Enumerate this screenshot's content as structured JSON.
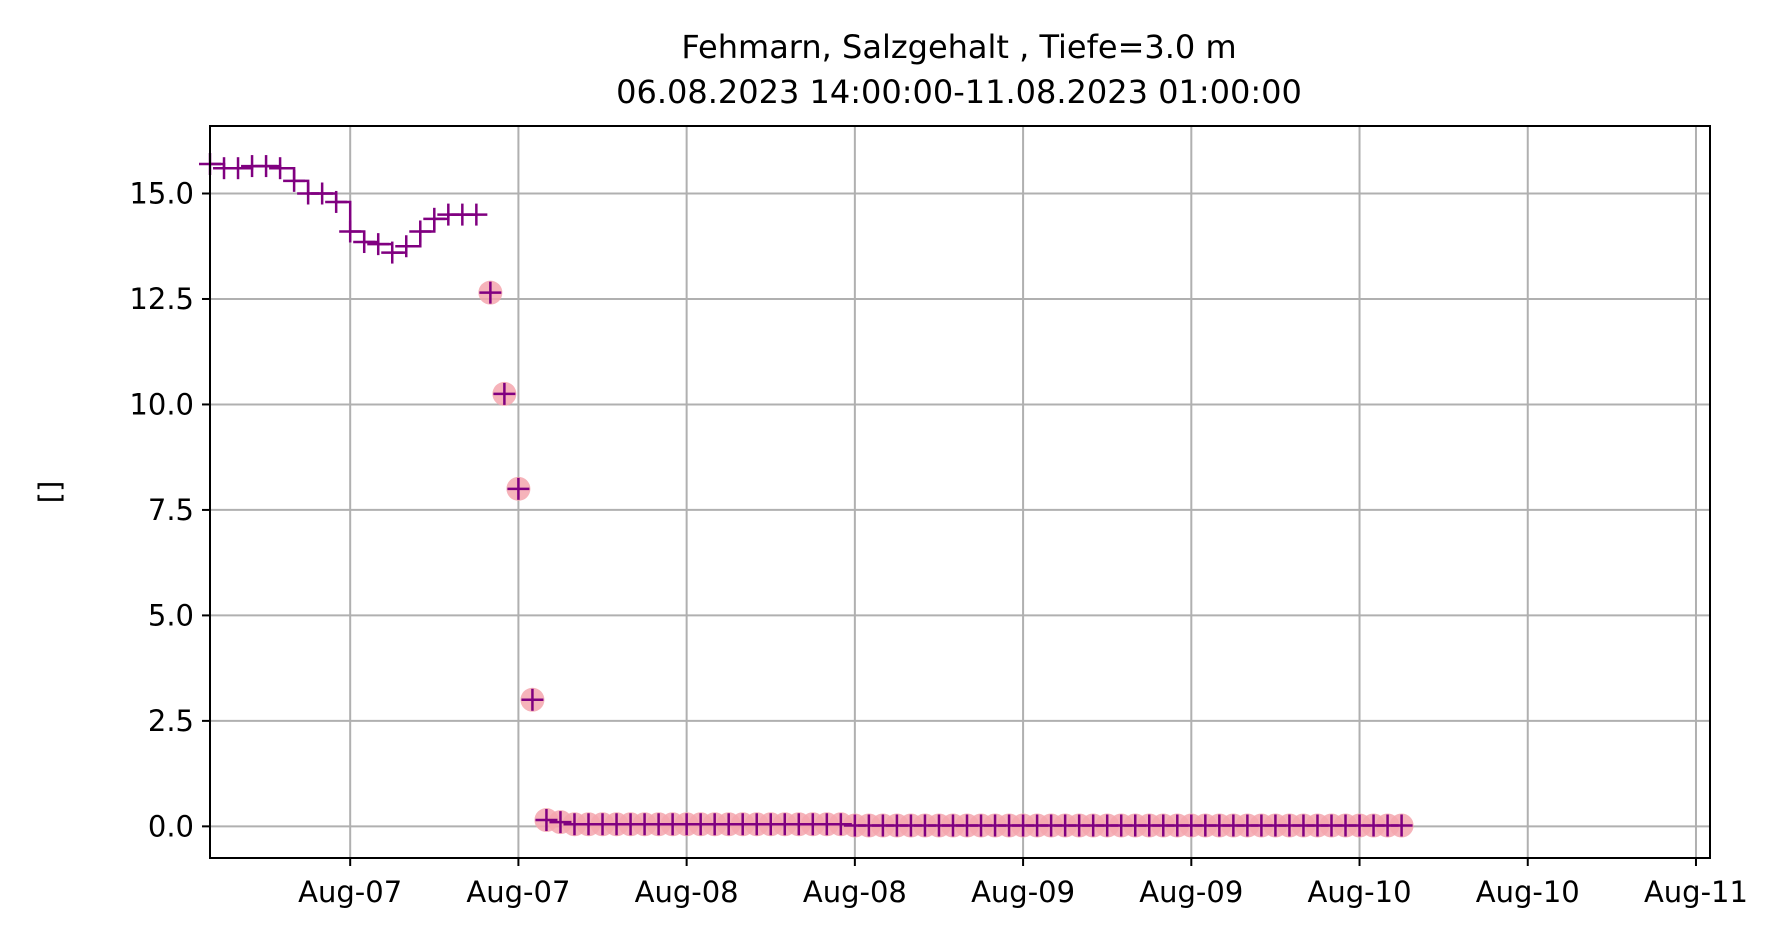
{
  "chart_data": {
    "type": "scatter",
    "title": "Fehmarn, Salzgehalt , Tiefe=3.0 m",
    "subtitle": "06.08.2023 14:00:00-11.08.2023 01:00:00",
    "xlabel": "",
    "ylabel": "[]",
    "xlim": [
      "2023-08-06T14:00",
      "2023-08-11T01:00"
    ],
    "ylim": [
      -0.75,
      16.6
    ],
    "grid": true,
    "x_ticks": [
      {
        "x": "2023-08-07T00:00",
        "label": "Aug-07"
      },
      {
        "x": "2023-08-07T12:00",
        "label": "Aug-07"
      },
      {
        "x": "2023-08-08T00:00",
        "label": "Aug-08"
      },
      {
        "x": "2023-08-08T12:00",
        "label": "Aug-08"
      },
      {
        "x": "2023-08-09T00:00",
        "label": "Aug-09"
      },
      {
        "x": "2023-08-09T12:00",
        "label": "Aug-09"
      },
      {
        "x": "2023-08-10T00:00",
        "label": "Aug-10"
      },
      {
        "x": "2023-08-10T12:00",
        "label": "Aug-10"
      },
      {
        "x": "2023-08-11T00:00",
        "label": "Aug-11"
      }
    ],
    "y_ticks": [
      {
        "y": 0.0,
        "label": "0.0"
      },
      {
        "y": 2.5,
        "label": "2.5"
      },
      {
        "y": 5.0,
        "label": "5.0"
      },
      {
        "y": 7.5,
        "label": "7.5"
      },
      {
        "y": 10.0,
        "label": "10.0"
      },
      {
        "y": 12.5,
        "label": "12.5"
      },
      {
        "y": 15.0,
        "label": "15.0"
      }
    ],
    "series": [
      {
        "style": "step-plus",
        "color": "#800080",
        "x": [
          "2023-08-06T14:00",
          "2023-08-06T15:00",
          "2023-08-06T16:00",
          "2023-08-06T17:00",
          "2023-08-06T18:00",
          "2023-08-06T19:00",
          "2023-08-06T20:00",
          "2023-08-06T21:00",
          "2023-08-06T22:00",
          "2023-08-06T23:00",
          "2023-08-07T00:00",
          "2023-08-07T01:00",
          "2023-08-07T02:00",
          "2023-08-07T03:00",
          "2023-08-07T04:00",
          "2023-08-07T05:00",
          "2023-08-07T06:00",
          "2023-08-07T07:00",
          "2023-08-07T08:00",
          "2023-08-07T09:00"
        ],
        "values": [
          15.7,
          15.6,
          15.6,
          15.65,
          15.65,
          15.6,
          15.3,
          15.0,
          15.0,
          14.8,
          14.1,
          13.85,
          13.8,
          13.6,
          13.75,
          14.1,
          14.4,
          14.5,
          14.5,
          14.5
        ]
      },
      {
        "style": "plus-with-pink-circle",
        "color": "#800080",
        "marker_background": "#f4a6ae",
        "x": [
          "2023-08-07T10:00",
          "2023-08-07T11:00",
          "2023-08-07T12:00",
          "2023-08-07T13:00",
          "2023-08-07T14:00",
          "2023-08-07T15:00",
          "2023-08-07T16:00",
          "2023-08-07T17:00",
          "2023-08-07T18:00",
          "2023-08-07T19:00",
          "2023-08-07T20:00",
          "2023-08-07T21:00",
          "2023-08-07T22:00",
          "2023-08-07T23:00",
          "2023-08-08T00:00",
          "2023-08-08T01:00",
          "2023-08-08T02:00",
          "2023-08-08T03:00",
          "2023-08-08T04:00",
          "2023-08-08T05:00",
          "2023-08-08T06:00",
          "2023-08-08T07:00",
          "2023-08-08T08:00",
          "2023-08-08T09:00",
          "2023-08-08T10:00",
          "2023-08-08T11:00",
          "2023-08-08T12:00",
          "2023-08-08T13:00",
          "2023-08-08T14:00",
          "2023-08-08T15:00",
          "2023-08-08T16:00",
          "2023-08-08T17:00",
          "2023-08-08T18:00",
          "2023-08-08T19:00",
          "2023-08-08T20:00",
          "2023-08-08T21:00",
          "2023-08-08T22:00",
          "2023-08-08T23:00",
          "2023-08-09T00:00",
          "2023-08-09T01:00",
          "2023-08-09T02:00",
          "2023-08-09T03:00",
          "2023-08-09T04:00",
          "2023-08-09T05:00",
          "2023-08-09T06:00",
          "2023-08-09T07:00",
          "2023-08-09T08:00",
          "2023-08-09T09:00",
          "2023-08-09T10:00",
          "2023-08-09T11:00",
          "2023-08-09T12:00",
          "2023-08-09T13:00",
          "2023-08-09T14:00",
          "2023-08-09T15:00",
          "2023-08-09T16:00",
          "2023-08-09T17:00",
          "2023-08-09T18:00",
          "2023-08-09T19:00",
          "2023-08-09T20:00",
          "2023-08-09T21:00",
          "2023-08-09T22:00",
          "2023-08-09T23:00",
          "2023-08-10T00:00",
          "2023-08-10T01:00",
          "2023-08-10T02:00",
          "2023-08-10T03:00"
        ],
        "values": [
          12.65,
          10.25,
          8.0,
          3.0,
          0.15,
          0.1,
          0.05,
          0.05,
          0.05,
          0.05,
          0.05,
          0.05,
          0.05,
          0.05,
          0.05,
          0.05,
          0.05,
          0.05,
          0.05,
          0.05,
          0.05,
          0.05,
          0.05,
          0.05,
          0.05,
          0.05,
          0.02,
          0.02,
          0.02,
          0.02,
          0.02,
          0.02,
          0.02,
          0.02,
          0.02,
          0.02,
          0.02,
          0.02,
          0.02,
          0.02,
          0.02,
          0.02,
          0.02,
          0.02,
          0.02,
          0.02,
          0.02,
          0.02,
          0.02,
          0.02,
          0.02,
          0.02,
          0.02,
          0.02,
          0.02,
          0.02,
          0.02,
          0.02,
          0.02,
          0.02,
          0.02,
          0.02,
          0.02,
          0.02,
          0.02,
          0.02
        ]
      }
    ]
  }
}
